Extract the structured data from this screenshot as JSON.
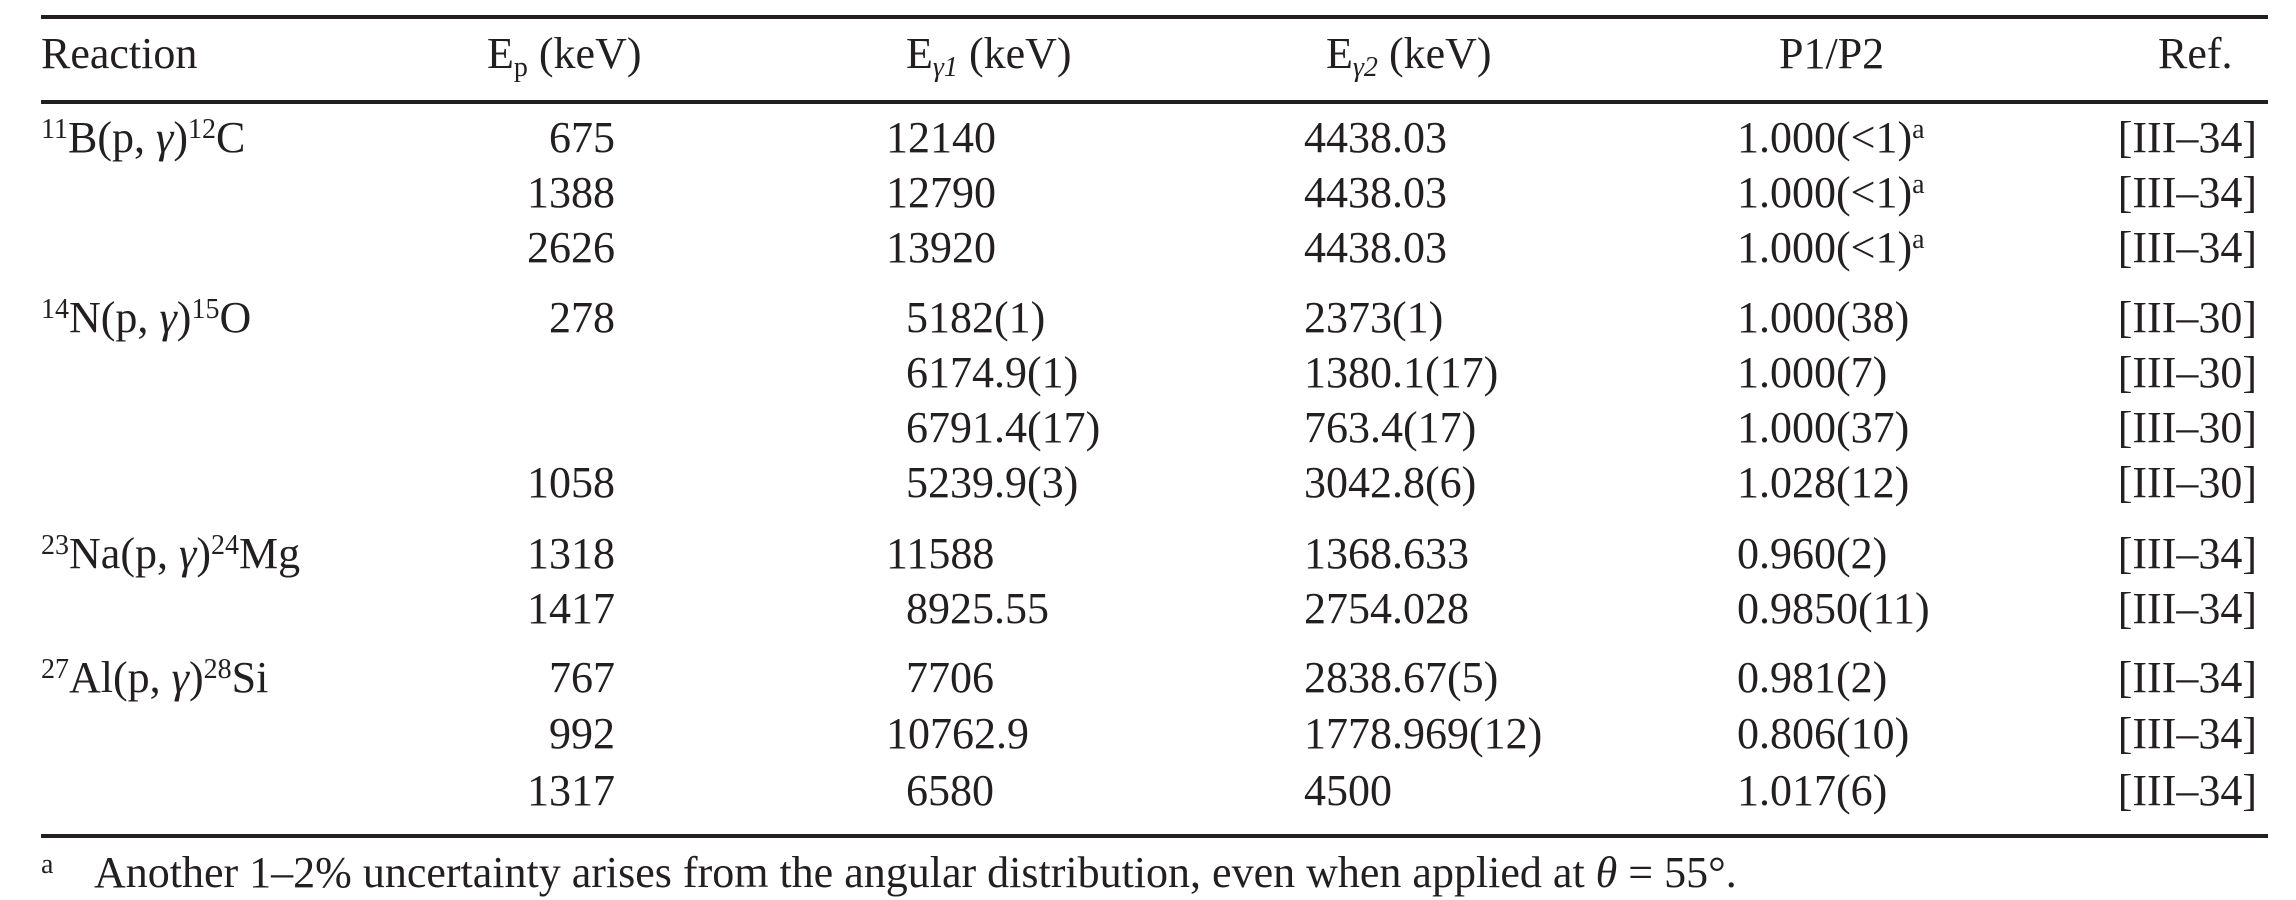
{
  "header": {
    "reaction": "Reaction",
    "ep_main": "E",
    "ep_sub": "p",
    "ep_unit": " (keV)",
    "eg1_main": "E",
    "eg1_sub": "γ1",
    "eg1_unit": " (keV)",
    "eg2_main": "E",
    "eg2_sub": "γ2",
    "eg2_unit": " (keV)",
    "ratio": "P1/P2",
    "ref": "Ref."
  },
  "groups": [
    {
      "mass_in": "11",
      "target": "B",
      "open": "(p, ",
      "gamma": "γ",
      "close": ")",
      "mass_out": "12",
      "product": "C"
    },
    {
      "mass_in": "14",
      "target": "N",
      "open": "(p, ",
      "gamma": "γ",
      "close": ")",
      "mass_out": "15",
      "product": "O"
    },
    {
      "mass_in": "23",
      "target": "Na",
      "open": "(p, ",
      "gamma": "γ",
      "close": ")",
      "mass_out": "24",
      "product": "Mg"
    },
    {
      "mass_in": "27",
      "target": "Al",
      "open": "(p, ",
      "gamma": "γ",
      "close": ")",
      "mass_out": "28",
      "product": "Si"
    }
  ],
  "rows": [
    {
      "ep": "675",
      "eg1": "12140",
      "eg2": "4438.03",
      "ratio": "1.000(<1)",
      "note": "a",
      "ref": "[III–34]"
    },
    {
      "ep": "1388",
      "eg1": "12790",
      "eg2": "4438.03",
      "ratio": "1.000(<1)",
      "note": "a",
      "ref": "[III–34]"
    },
    {
      "ep": "2626",
      "eg1": "13920",
      "eg2": "4438.03",
      "ratio": "1.000(<1)",
      "note": "a",
      "ref": "[III–34]"
    },
    {
      "ep": "278",
      "eg1": "5182(1)",
      "eg2": "2373(1)",
      "ratio": "1.000(38)",
      "ref": "[III–30]"
    },
    {
      "eg1": "6174.9(1)",
      "eg2": "1380.1(17)",
      "ratio": "1.000(7)",
      "ref": "[III–30]"
    },
    {
      "eg1": "6791.4(17)",
      "eg2": "763.4(17)",
      "ratio": "1.000(37)",
      "ref": "[III–30]"
    },
    {
      "ep": "1058",
      "eg1": "5239.9(3)",
      "eg2": "3042.8(6)",
      "ratio": "1.028(12)",
      "ref": "[III–30]"
    },
    {
      "ep": "1318",
      "eg1": "11588",
      "eg2": "1368.633",
      "ratio": "0.960(2)",
      "ref": "[III–34]"
    },
    {
      "ep": "1417",
      "eg1": "8925.55",
      "eg2": "2754.028",
      "ratio": "0.9850(11)",
      "ref": "[III–34]"
    },
    {
      "ep": "767",
      "eg1": "7706",
      "eg2": "2838.67(5)",
      "ratio": "0.981(2)",
      "ref": "[III–34]"
    },
    {
      "ep": "992",
      "eg1": "10762.9",
      "eg2": "1778.969(12)",
      "ratio": "0.806(10)",
      "ref": "[III–34]"
    },
    {
      "ep": "1317",
      "eg1": "6580",
      "eg2": "4500",
      "ratio": "1.017(6)",
      "ref": "[III–34]"
    }
  ],
  "footnote": {
    "mark": "a",
    "text_before": "Another 1–2% uncertainty arises from the angular distribution, even when applied at ",
    "theta": "θ",
    "text_after": " = 55°."
  }
}
